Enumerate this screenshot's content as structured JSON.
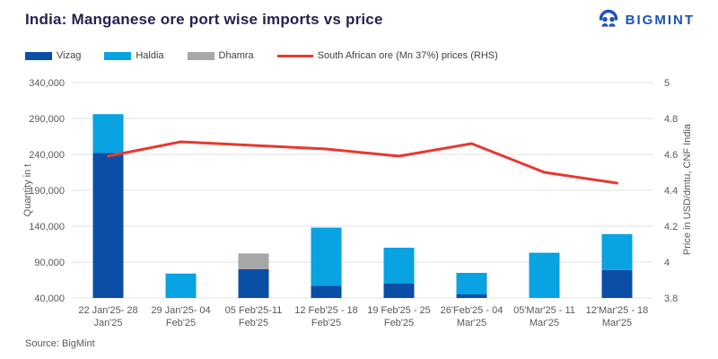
{
  "header": {
    "title": "India: Manganese ore port wise imports vs price",
    "brand": "BIGMINT"
  },
  "source": "Source: BigMint",
  "colors": {
    "vizag": "#0b4ea6",
    "haldia": "#09a2e3",
    "dhamra": "#a7a7a7",
    "price_line": "#e8392f",
    "brand": "#1d52b8",
    "title_text": "#23234f",
    "grid": "#e2e2e2",
    "tick_text": "#595959",
    "legend_text": "#404040"
  },
  "chart_data": {
    "type": "bar",
    "subtype": "stacked-bars-with-line-combo",
    "title": "India: Manganese ore port wise imports vs price",
    "grid": "horizontal",
    "legend_position": "top-left",
    "categories": [
      [
        "22 Jan'25- 28",
        "Jan'25"
      ],
      [
        "29 Jan'25- 04",
        "Feb'25"
      ],
      [
        "05 Feb'25-11",
        "Feb'25"
      ],
      [
        "12 Feb'25 - 18",
        "Feb'25"
      ],
      [
        "19 Feb'25 - 25",
        "Feb'25"
      ],
      [
        "26'Feb'25 - 04",
        "Mar'25"
      ],
      [
        "05'Mar'25 - 11",
        "Mar'25"
      ],
      [
        "12'Mar'25 - 18",
        "Mar'25"
      ]
    ],
    "series": [
      {
        "name": "Vizag",
        "type": "bar",
        "axis": "left",
        "color_key": "vizag",
        "values": [
          242000,
          0,
          80000,
          57000,
          60000,
          45000,
          0,
          79000
        ]
      },
      {
        "name": "Haldia",
        "type": "bar",
        "axis": "left",
        "color_key": "haldia",
        "values": [
          54000,
          74000,
          0,
          81000,
          50000,
          30000,
          103000,
          50000
        ]
      },
      {
        "name": "Dhamra",
        "type": "bar",
        "axis": "left",
        "color_key": "dhamra",
        "values": [
          0,
          0,
          22000,
          0,
          0,
          0,
          0,
          0
        ]
      },
      {
        "name": "South African ore (Mn 37%) prices (RHS)",
        "type": "line",
        "axis": "right",
        "color_key": "price_line",
        "values": [
          4.59,
          4.67,
          4.65,
          4.63,
          4.59,
          4.66,
          4.5,
          4.44
        ]
      }
    ],
    "left_axis": {
      "label": "Quantity in t",
      "min": 40000,
      "max": 340000,
      "step": 50000,
      "ticks": [
        "340,000",
        "290,000",
        "240,000",
        "190,000",
        "140,000",
        "90,000",
        "40,000"
      ]
    },
    "right_axis": {
      "label": "Price in USD/dmtu, CNF India",
      "min": 3.8,
      "max": 5,
      "step": 0.2,
      "ticks": [
        "5",
        "4.8",
        "4.6",
        "4.4",
        "4.2",
        "4",
        "3.8"
      ]
    }
  }
}
